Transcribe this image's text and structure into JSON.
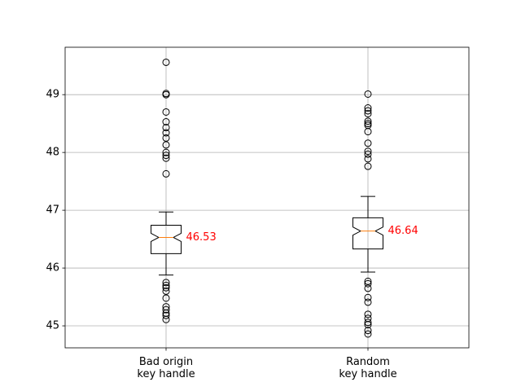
{
  "chart_data": {
    "type": "box",
    "title": "",
    "xlabel": "",
    "ylabel": "",
    "ylim": [
      44.62,
      49.82
    ],
    "yticks": [
      45,
      46,
      47,
      48,
      49
    ],
    "grid": true,
    "notched": true,
    "colors": {
      "box": "#000000",
      "median_line": "#ff7f0e",
      "median_text": "#ff0000",
      "grid": "#b0b0b0"
    },
    "categories": [
      [
        "Bad origin",
        "key handle"
      ],
      [
        "Random",
        "key handle"
      ]
    ],
    "boxes": [
      {
        "median": 46.53,
        "median_label": "46.53",
        "q1": 46.25,
        "q3": 46.74,
        "notch_low": 46.46,
        "notch_high": 46.6,
        "whisker_low": 45.88,
        "whisker_high": 46.97,
        "outliers": [
          49.56,
          49.02,
          49.0,
          48.7,
          48.53,
          48.43,
          48.34,
          48.25,
          48.13,
          48.0,
          47.95,
          47.9,
          47.63,
          45.75,
          45.7,
          45.66,
          45.6,
          45.48,
          45.33,
          45.28,
          45.22,
          45.18,
          45.11
        ]
      },
      {
        "median": 46.64,
        "median_label": "46.64",
        "q1": 46.33,
        "q3": 46.87,
        "notch_low": 46.57,
        "notch_high": 46.71,
        "whisker_low": 45.93,
        "whisker_high": 47.24,
        "outliers": [
          49.01,
          48.77,
          48.72,
          48.67,
          48.54,
          48.5,
          48.47,
          48.36,
          48.16,
          48.02,
          47.97,
          47.89,
          47.76,
          45.77,
          45.73,
          45.65,
          45.49,
          45.41,
          45.2,
          45.13,
          45.06,
          45.02,
          44.92,
          44.86
        ]
      }
    ]
  }
}
